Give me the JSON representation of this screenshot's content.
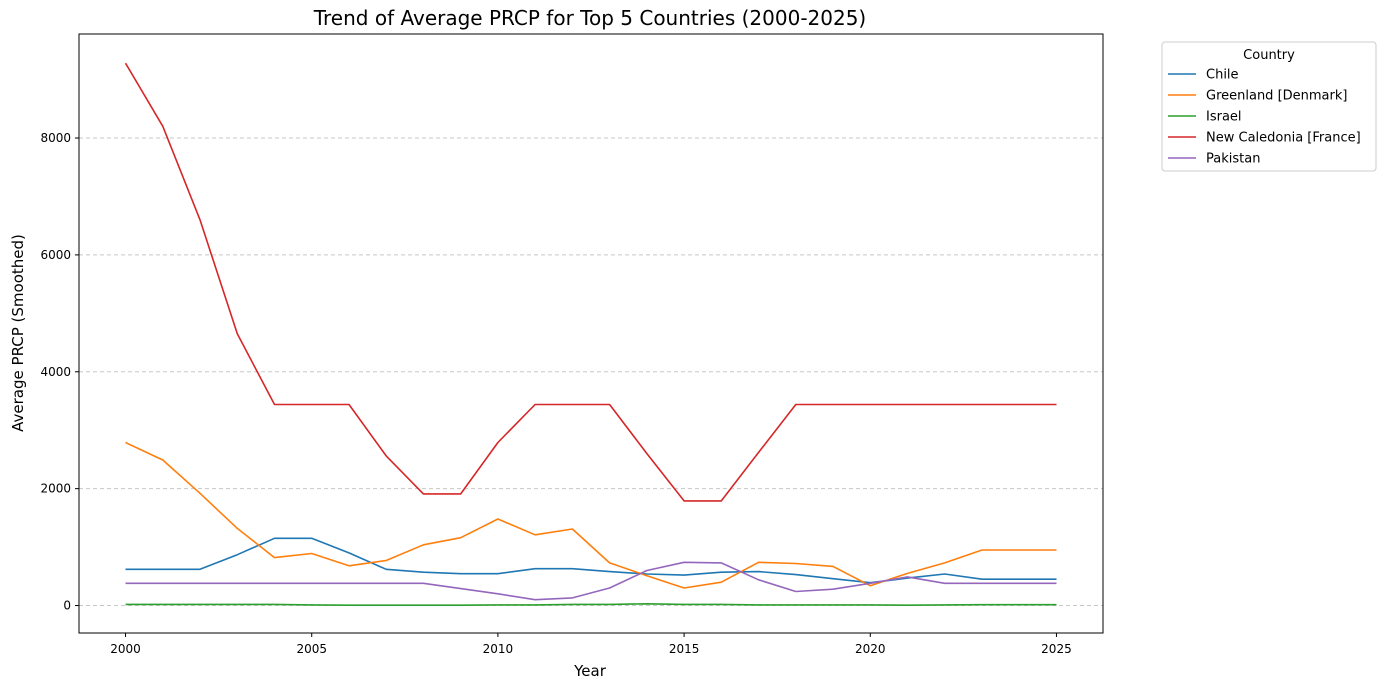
{
  "chart_data": {
    "type": "line",
    "title": "Trend of Average PRCP for Top 5 Countries (2000-2025)",
    "xlabel": "Year",
    "ylabel": "Average PRCP (Smoothed)",
    "xlim": [
      1998.75,
      2026.25
    ],
    "ylim": [
      -470,
      9780
    ],
    "x_ticks": [
      "2000",
      "2005",
      "2010",
      "2015",
      "2020",
      "2025"
    ],
    "y_ticks": [
      "0",
      "2000",
      "4000",
      "6000",
      "8000"
    ],
    "grid": "horizontal dashed",
    "legend": {
      "title": "Country",
      "placement": "outside top-right"
    },
    "x": [
      2000,
      2001,
      2002,
      2003,
      2004,
      2005,
      2006,
      2007,
      2008,
      2009,
      2010,
      2011,
      2012,
      2013,
      2014,
      2015,
      2016,
      2017,
      2018,
      2019,
      2020,
      2021,
      2022,
      2023,
      2024,
      2025
    ],
    "series": [
      {
        "name": "Chile",
        "color": "#1f77b4",
        "values": [
          620,
          620,
          620,
          870,
          1150,
          1150,
          900,
          620,
          570,
          545,
          545,
          630,
          630,
          580,
          540,
          520,
          570,
          580,
          530,
          460,
          390,
          470,
          540,
          450,
          450,
          450
        ]
      },
      {
        "name": "Greenland [Denmark]",
        "color": "#ff7f0e",
        "values": [
          2790,
          2490,
          1920,
          1320,
          820,
          890,
          680,
          770,
          1040,
          1160,
          1480,
          1210,
          1310,
          730,
          510,
          300,
          400,
          740,
          720,
          670,
          340,
          550,
          730,
          950,
          950,
          950
        ]
      },
      {
        "name": "Israel",
        "color": "#2ca02c",
        "values": [
          20,
          20,
          20,
          20,
          20,
          10,
          5,
          5,
          5,
          5,
          10,
          10,
          20,
          20,
          30,
          20,
          20,
          10,
          10,
          10,
          10,
          5,
          10,
          15,
          15,
          15
        ]
      },
      {
        "name": "New Caledonia [France]",
        "color": "#d62728",
        "values": [
          9280,
          8200,
          6600,
          4650,
          3440,
          3440,
          3440,
          2560,
          1910,
          1910,
          2790,
          3440,
          3440,
          3440,
          2600,
          1790,
          1790,
          2620,
          3440,
          3440,
          3440,
          3440,
          3440,
          3440,
          3440,
          3440
        ]
      },
      {
        "name": "Pakistan",
        "color": "#9467bd",
        "values": [
          380,
          380,
          380,
          380,
          380,
          380,
          380,
          380,
          380,
          290,
          200,
          100,
          130,
          300,
          600,
          740,
          730,
          440,
          240,
          280,
          380,
          490,
          380,
          380,
          380,
          380
        ]
      }
    ]
  }
}
